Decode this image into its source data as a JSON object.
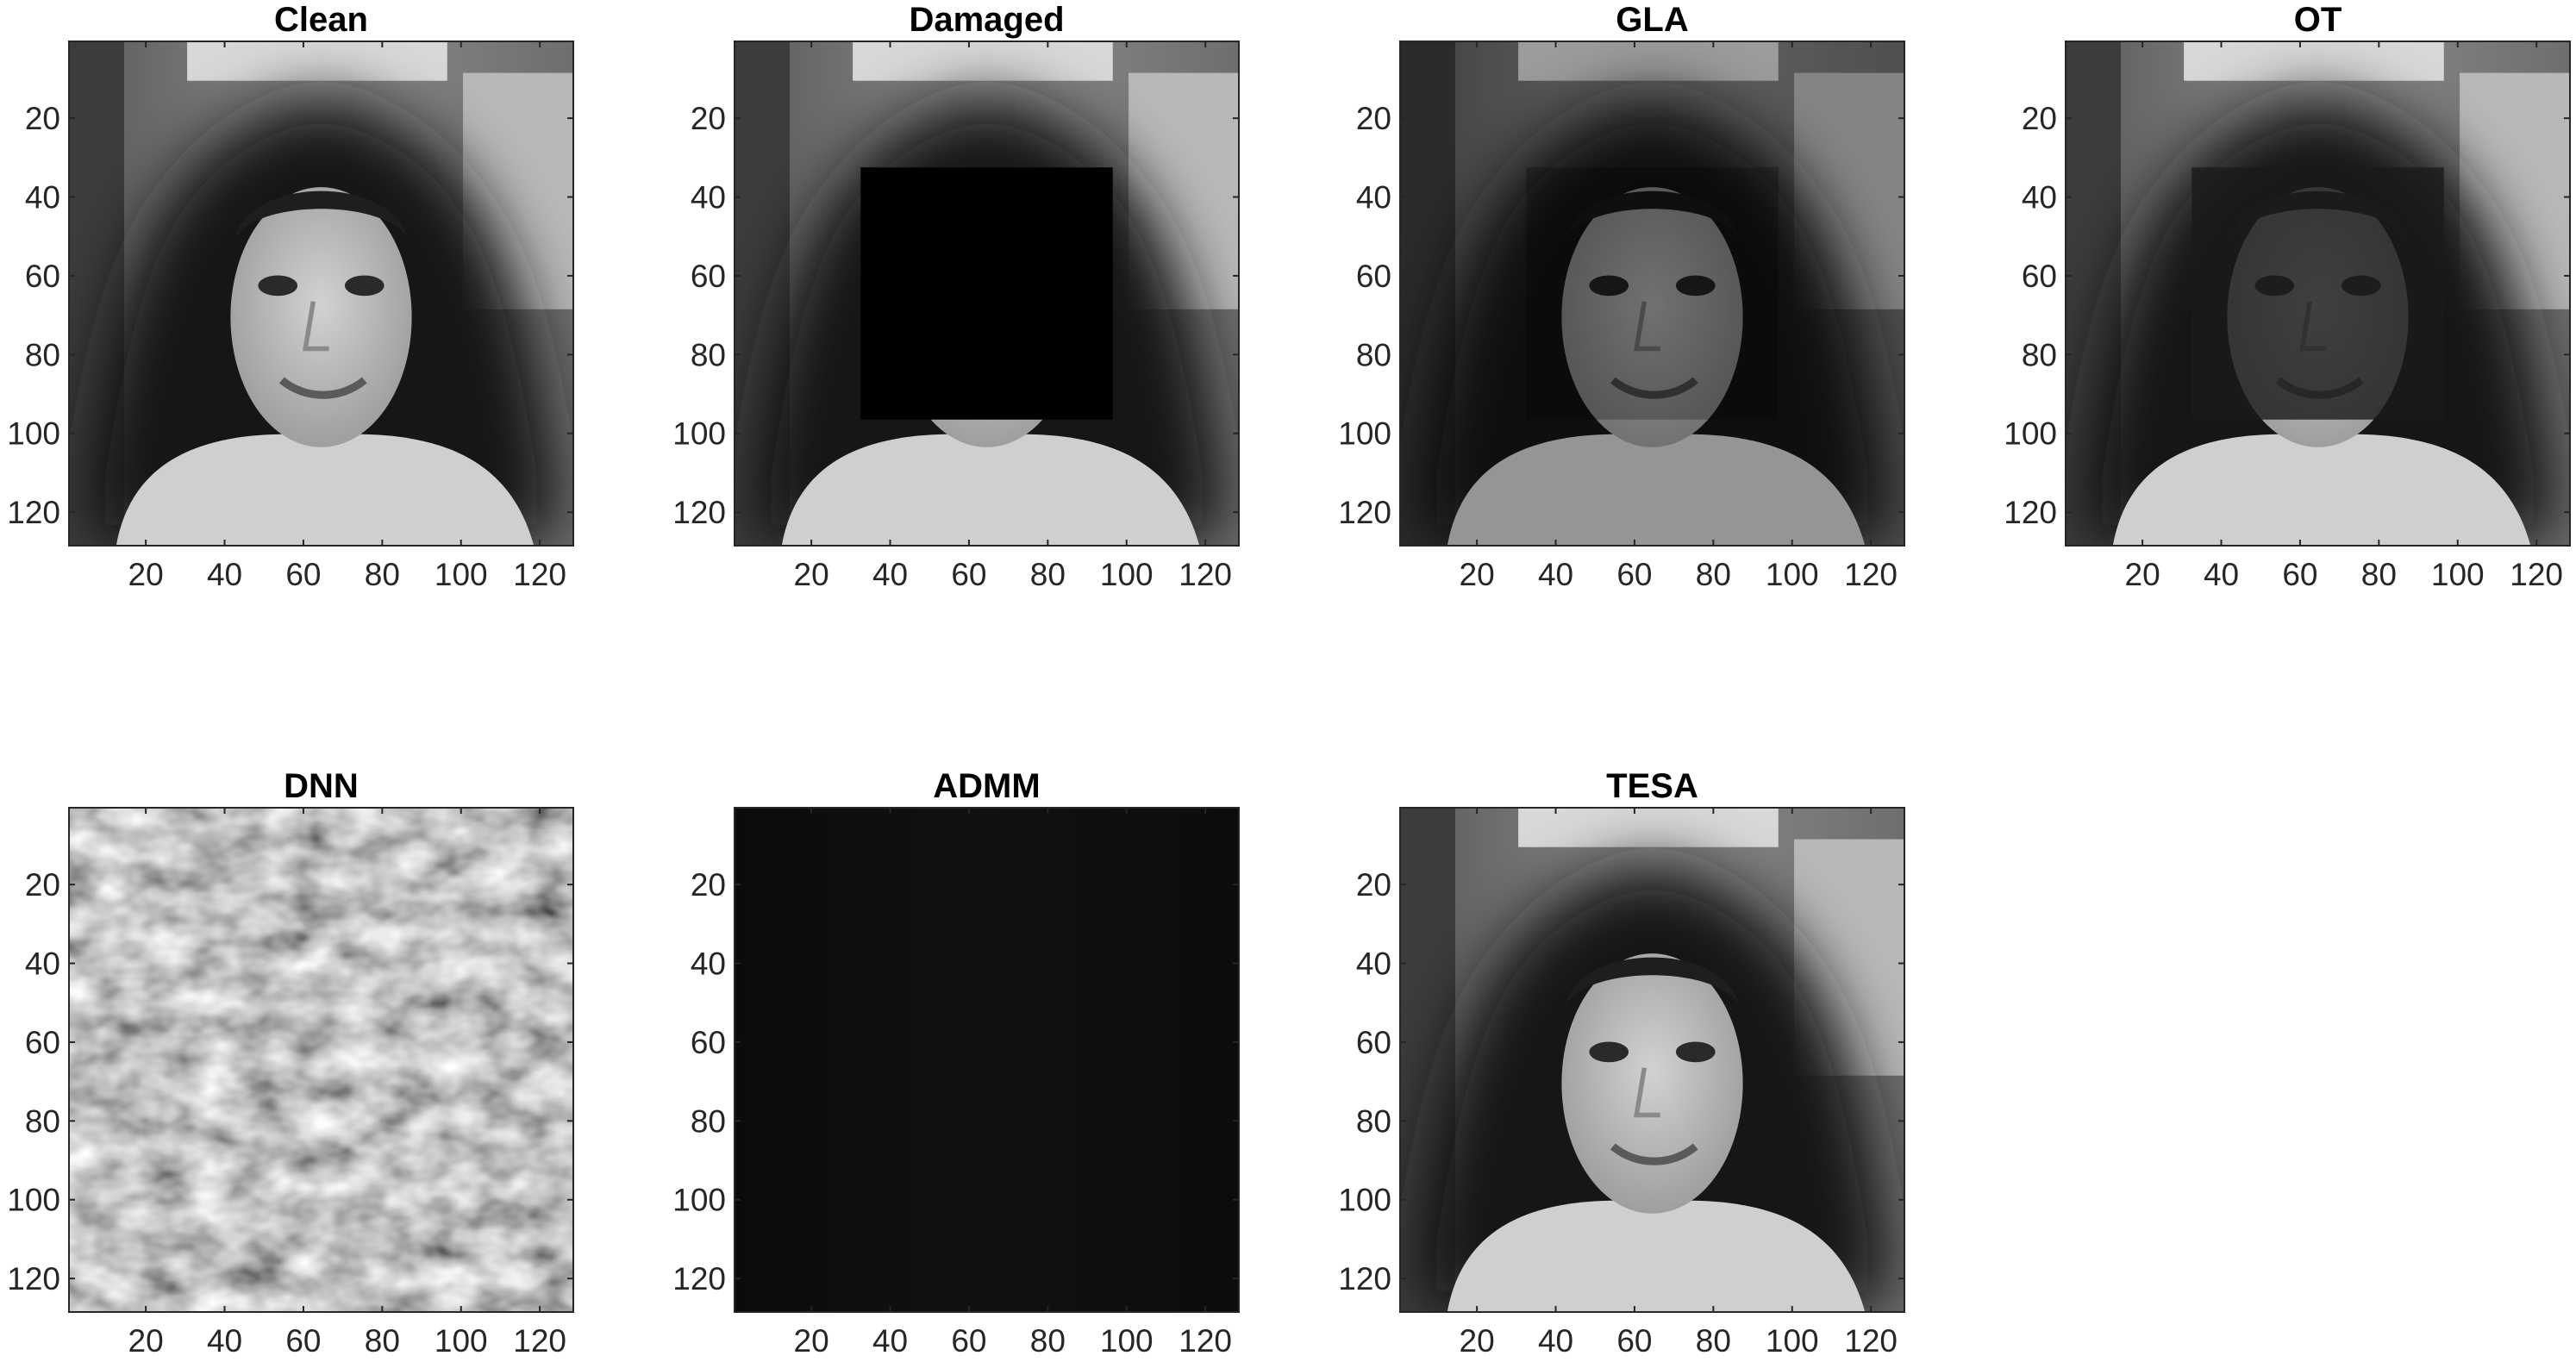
{
  "chart_data": [
    {
      "type": "heatmap",
      "title": "Clean",
      "colormap": "gray",
      "xlim": [
        0.5,
        128.5
      ],
      "ylim": [
        0.5,
        128.5
      ],
      "y_direction": "reverse",
      "xticks": [
        20,
        40,
        60,
        80,
        100,
        120
      ],
      "yticks": [
        20,
        40,
        60,
        80,
        100,
        120
      ],
      "content": "face",
      "occlusion": null
    },
    {
      "type": "heatmap",
      "title": "Damaged",
      "colormap": "gray",
      "xlim": [
        0.5,
        128.5
      ],
      "ylim": [
        0.5,
        128.5
      ],
      "y_direction": "reverse",
      "xticks": [
        20,
        40,
        60,
        80,
        100,
        120
      ],
      "yticks": [
        20,
        40,
        60,
        80,
        100,
        120
      ],
      "content": "face",
      "occlusion": {
        "x": [
          33,
          96
        ],
        "y": [
          33,
          96
        ],
        "value": 0,
        "opacity": 1.0
      }
    },
    {
      "type": "heatmap",
      "title": "GLA",
      "colormap": "gray",
      "xlim": [
        0.5,
        128.5
      ],
      "ylim": [
        0.5,
        128.5
      ],
      "y_direction": "reverse",
      "xticks": [
        20,
        40,
        60,
        80,
        100,
        120
      ],
      "yticks": [
        20,
        40,
        60,
        80,
        100,
        120
      ],
      "content": "face-dim",
      "occlusion": {
        "x": [
          33,
          96
        ],
        "y": [
          33,
          96
        ],
        "value": 0,
        "opacity": 0.25
      }
    },
    {
      "type": "heatmap",
      "title": "OT",
      "colormap": "gray",
      "xlim": [
        0.5,
        128.5
      ],
      "ylim": [
        0.5,
        128.5
      ],
      "y_direction": "reverse",
      "xticks": [
        20,
        40,
        60,
        80,
        100,
        120
      ],
      "yticks": [
        20,
        40,
        60,
        80,
        100,
        120
      ],
      "content": "face",
      "occlusion": {
        "x": [
          33,
          96
        ],
        "y": [
          33,
          96
        ],
        "value": 0.1,
        "opacity": 0.8
      }
    },
    {
      "type": "heatmap",
      "title": "DNN",
      "colormap": "gray",
      "xlim": [
        0.5,
        128.5
      ],
      "ylim": [
        0.5,
        128.5
      ],
      "y_direction": "reverse",
      "xticks": [
        20,
        40,
        60,
        80,
        100,
        120
      ],
      "yticks": [
        20,
        40,
        60,
        80,
        100,
        120
      ],
      "content": "noise",
      "occlusion": null
    },
    {
      "type": "heatmap",
      "title": "ADMM",
      "colormap": "gray",
      "xlim": [
        0.5,
        128.5
      ],
      "ylim": [
        0.5,
        128.5
      ],
      "y_direction": "reverse",
      "xticks": [
        20,
        40,
        60,
        80,
        100,
        120
      ],
      "yticks": [
        20,
        40,
        60,
        80,
        100,
        120
      ],
      "content": "dark",
      "occlusion": null
    },
    {
      "type": "heatmap",
      "title": "TESA",
      "colormap": "gray",
      "xlim": [
        0.5,
        128.5
      ],
      "ylim": [
        0.5,
        128.5
      ],
      "y_direction": "reverse",
      "xticks": [
        20,
        40,
        60,
        80,
        100,
        120
      ],
      "yticks": [
        20,
        40,
        60,
        80,
        100,
        120
      ],
      "content": "face",
      "occlusion": null
    }
  ]
}
